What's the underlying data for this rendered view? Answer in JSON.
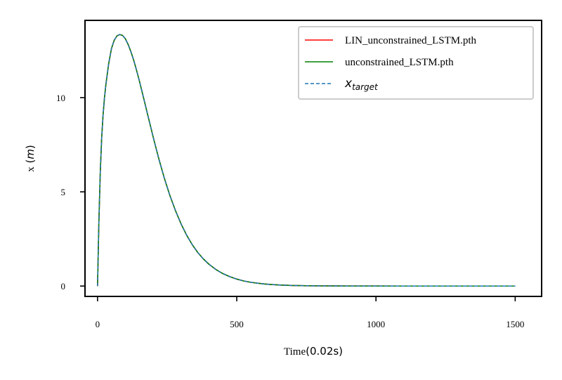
{
  "chart_data": {
    "type": "line",
    "title": "",
    "xlabel": "Time",
    "xlabel_unit": "(0.02s)",
    "ylabel": "x",
    "ylabel_unit": "m",
    "xlim": [
      -45,
      1595
    ],
    "ylim": [
      -0.55,
      14.1
    ],
    "xticks": [
      0,
      500,
      1000,
      1500
    ],
    "yticks": [
      0,
      5,
      10
    ],
    "grid": false,
    "legend_position": "top-right",
    "series": [
      {
        "name": "LIN_unconstrained_LSTM.pth",
        "color": "#ff0000",
        "style": "solid",
        "x": [
          0,
          5,
          10,
          15,
          20,
          25,
          30,
          40,
          50,
          60,
          70,
          80,
          90,
          100,
          110,
          120,
          130,
          140,
          150,
          160,
          170,
          180,
          190,
          200,
          220,
          240,
          260,
          280,
          300,
          320,
          340,
          360,
          380,
          400,
          425,
          450,
          475,
          500,
          525,
          550,
          575,
          600,
          625,
          650,
          675,
          700,
          750,
          800,
          850,
          900,
          1000,
          1100,
          1200,
          1300,
          1400,
          1500
        ],
        "y": [
          0.0,
          3.5,
          6.1,
          7.9,
          9.1,
          10.0,
          10.7,
          11.8,
          12.6,
          13.05,
          13.28,
          13.35,
          13.3,
          13.12,
          12.82,
          12.43,
          11.98,
          11.46,
          10.9,
          10.31,
          9.71,
          9.1,
          8.5,
          7.9,
          6.76,
          5.72,
          4.8,
          4.0,
          3.3,
          2.7,
          2.2,
          1.78,
          1.44,
          1.16,
          0.88,
          0.66,
          0.5,
          0.37,
          0.27,
          0.2,
          0.15,
          0.11,
          0.08,
          0.06,
          0.045,
          0.03,
          0.017,
          0.009,
          0.005,
          0.003,
          0.001,
          0.0,
          0.0,
          0.0,
          0.0,
          0.0
        ]
      },
      {
        "name": "unconstrained_LSTM.pth",
        "color": "#008000",
        "style": "solid",
        "x": [
          0,
          5,
          10,
          15,
          20,
          25,
          30,
          40,
          50,
          60,
          70,
          80,
          90,
          100,
          110,
          120,
          130,
          140,
          150,
          160,
          170,
          180,
          190,
          200,
          220,
          240,
          260,
          280,
          300,
          320,
          340,
          360,
          380,
          400,
          425,
          450,
          475,
          500,
          525,
          550,
          575,
          600,
          625,
          650,
          675,
          700,
          750,
          800,
          850,
          900,
          1000,
          1100,
          1200,
          1300,
          1400,
          1500
        ],
        "y": [
          0.0,
          3.5,
          6.1,
          7.9,
          9.1,
          10.0,
          10.7,
          11.8,
          12.6,
          13.05,
          13.28,
          13.35,
          13.3,
          13.12,
          12.82,
          12.43,
          11.98,
          11.46,
          10.9,
          10.31,
          9.71,
          9.1,
          8.5,
          7.9,
          6.76,
          5.72,
          4.8,
          4.0,
          3.3,
          2.7,
          2.2,
          1.78,
          1.44,
          1.16,
          0.88,
          0.66,
          0.5,
          0.37,
          0.27,
          0.2,
          0.15,
          0.11,
          0.08,
          0.06,
          0.045,
          0.03,
          0.017,
          0.009,
          0.005,
          0.003,
          0.001,
          0.0,
          0.0,
          0.0,
          0.0,
          0.0
        ]
      },
      {
        "name": "x",
        "name_subscript": "target",
        "color": "#1f77b4",
        "style": "dashed",
        "x": [
          0,
          5,
          10,
          15,
          20,
          25,
          30,
          40,
          50,
          60,
          70,
          80,
          90,
          100,
          110,
          120,
          130,
          140,
          150,
          160,
          170,
          180,
          190,
          200,
          220,
          240,
          260,
          280,
          300,
          320,
          340,
          360,
          380,
          400,
          425,
          450,
          475,
          500,
          525,
          550,
          575,
          600,
          625,
          650,
          675,
          700,
          750,
          800,
          850,
          900,
          1000,
          1100,
          1200,
          1300,
          1400,
          1500
        ],
        "y": [
          0.0,
          3.5,
          6.1,
          7.9,
          9.1,
          10.0,
          10.7,
          11.8,
          12.6,
          13.05,
          13.28,
          13.35,
          13.3,
          13.12,
          12.82,
          12.43,
          11.98,
          11.46,
          10.9,
          10.31,
          9.71,
          9.1,
          8.5,
          7.9,
          6.76,
          5.72,
          4.8,
          4.0,
          3.3,
          2.7,
          2.2,
          1.78,
          1.44,
          1.16,
          0.88,
          0.66,
          0.5,
          0.37,
          0.27,
          0.2,
          0.15,
          0.11,
          0.08,
          0.06,
          0.045,
          0.03,
          0.017,
          0.009,
          0.005,
          0.003,
          0.001,
          0.0,
          0.0,
          0.0,
          0.0,
          0.0
        ]
      }
    ]
  }
}
